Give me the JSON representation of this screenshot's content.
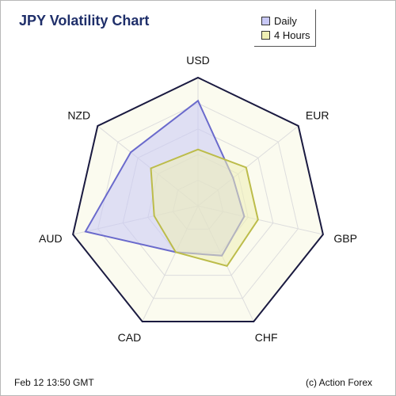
{
  "chart_data": {
    "type": "radar",
    "title": "JPY Volatility Chart",
    "axes": [
      "USD",
      "EUR",
      "GBP",
      "CHF",
      "CAD",
      "AUD",
      "NZD"
    ],
    "rlim": [
      0,
      100
    ],
    "rings": 5,
    "grid": true,
    "legend_position": "top-right",
    "series": [
      {
        "name": "Daily",
        "values": [
          82,
          35,
          37,
          43,
          40,
          90,
          67
        ],
        "stroke": "#6a6acc",
        "fill": "#c8c8f6"
      },
      {
        "name": "4 Hours",
        "values": [
          44,
          48,
          48,
          52,
          40,
          35,
          47
        ],
        "stroke": "#bcbc4a",
        "fill": "#eeeeb4"
      }
    ]
  },
  "footer": {
    "date": "Feb 12  13:50 GMT",
    "copyright": "(c) Action Forex"
  },
  "colors": {
    "title": "#1f2f6a",
    "outline": "#1a1a40",
    "grid_fill": "#fbfbef",
    "grid_line": "#dddddd"
  }
}
